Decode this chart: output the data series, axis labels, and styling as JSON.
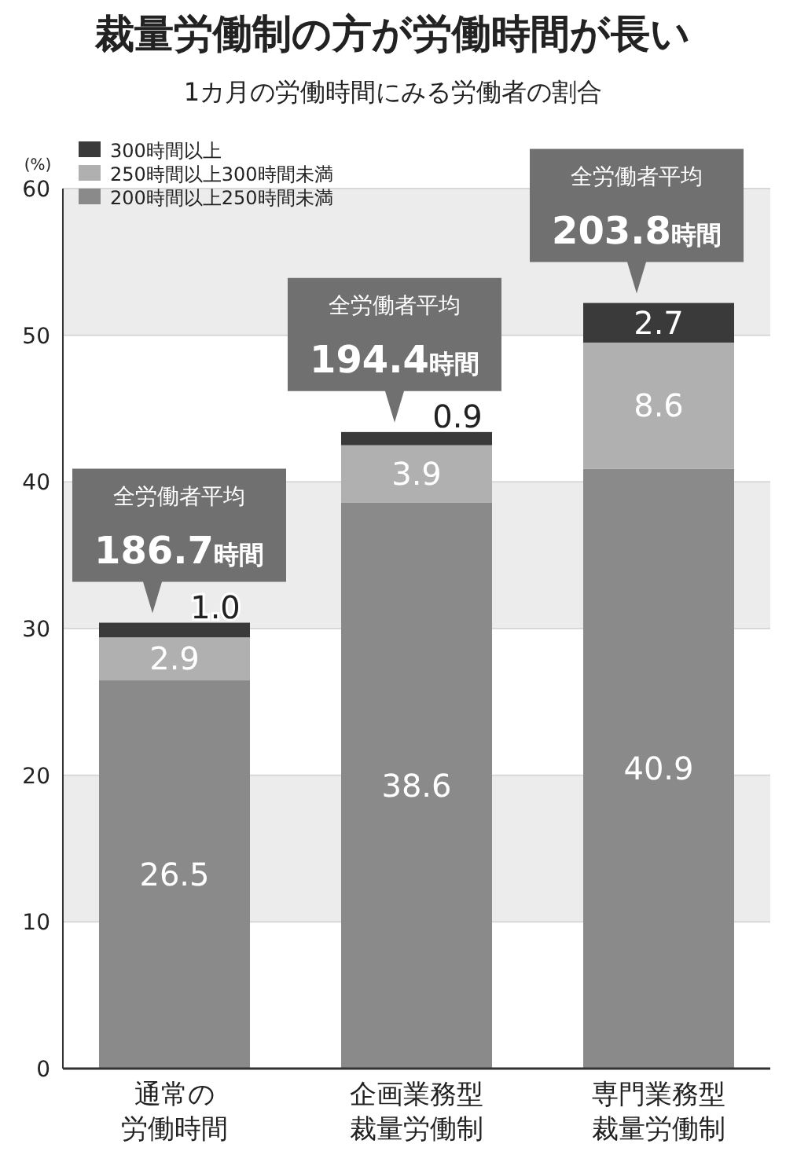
{
  "chart_data": {
    "type": "bar",
    "stacked": true,
    "title": "裁量労働制の方が労働時間が長い",
    "subtitle": "1カ月の労働時間にみる労働者の割合",
    "ylabel": "(%)",
    "categories": [
      "通常の労働時間",
      "企画業務型裁量労働制",
      "専門業務型裁量労働制"
    ],
    "series": [
      {
        "name": "200時間以上250時間未満",
        "color": "#8a8a8a",
        "values": [
          26.5,
          38.6,
          40.9
        ],
        "value_labels": [
          "26.5",
          "38.6",
          "40.9"
        ]
      },
      {
        "name": "250時間以上300時間未満",
        "color": "#b0b0b0",
        "values": [
          2.9,
          3.9,
          8.6
        ],
        "value_labels": [
          "2.9",
          "3.9",
          "8.6"
        ]
      },
      {
        "name": "300時間以上",
        "color": "#3a3a3a",
        "values": [
          1.0,
          0.9,
          2.7
        ],
        "value_labels": [
          "1.0",
          "0.9",
          "2.7"
        ]
      }
    ],
    "ylim": [
      0,
      60
    ],
    "yticks": [
      0,
      10,
      20,
      30,
      40,
      50,
      60
    ],
    "grid": true,
    "legend": "top left",
    "annotations": [
      {
        "text": "全労働者平均186.7時間",
        "x": "通常の労働時間",
        "y": 30.4
      },
      {
        "text": "全労働者平均194.4時間",
        "x": "企画業務型裁量労働制",
        "y": 43.4
      },
      {
        "text": "全労働者平均203.8時間",
        "x": "専門業務型裁量労働制",
        "y": 52.2
      }
    ]
  }
}
